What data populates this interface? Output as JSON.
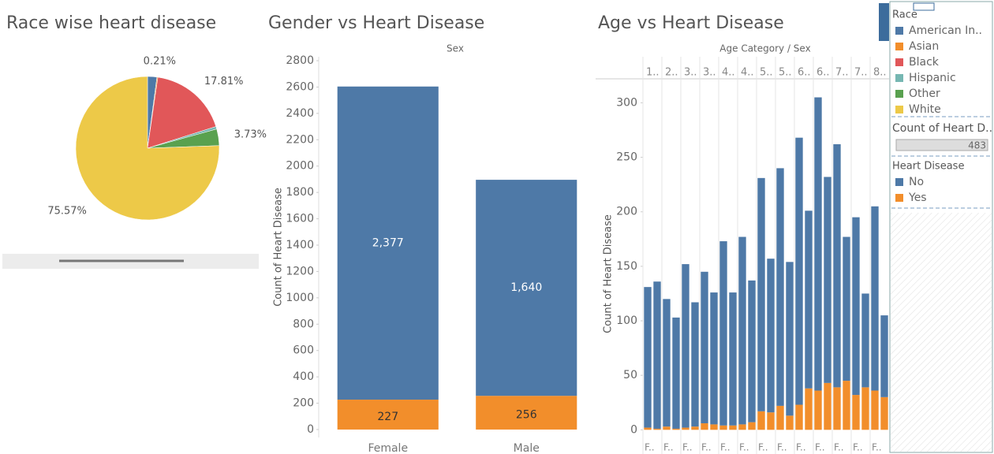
{
  "chart_data": [
    {
      "type": "pie",
      "title": "Race wise heart disease",
      "categories": [
        "American In..",
        "Asian",
        "Black",
        "Hispanic",
        "Other",
        "White"
      ],
      "values": [
        2.1,
        0.21,
        17.81,
        0.58,
        3.73,
        75.57
      ],
      "value_labels": [
        null,
        "0.21%",
        "17.81%",
        null,
        "3.73%",
        "75.57%"
      ],
      "colors": [
        "#4e79a7",
        "#f28e2b",
        "#e15759",
        "#76b7b2",
        "#59a14f",
        "#edc948"
      ],
      "legend_title": "Race"
    },
    {
      "type": "stacked_bar",
      "title": "Gender vs Heart Disease",
      "header": "Sex",
      "ylabel": "Count of Heart Disease",
      "categories": [
        "Female",
        "Male"
      ],
      "series": [
        {
          "name": "No",
          "color": "#4e79a7",
          "values": [
            2377,
            1640
          ],
          "value_labels": [
            "2,377",
            "1,640"
          ]
        },
        {
          "name": "Yes",
          "color": "#f28e2b",
          "values": [
            227,
            256
          ]
        }
      ],
      "ylim": [
        -60,
        2830
      ],
      "yticks": [
        0,
        200,
        400,
        600,
        800,
        1000,
        1200,
        1400,
        1600,
        1800,
        2000,
        2200,
        2400,
        2600,
        2800
      ],
      "legend_title": "Heart Disease"
    },
    {
      "type": "grouped_stacked_bar",
      "title": "Age vs Heart Disease",
      "header": "Age Category / Sex",
      "ylabel": "Count of Heart Disease",
      "groups": [
        "1..",
        "2..",
        "3..",
        "3..",
        "4..",
        "4..",
        "5..",
        "5..",
        "6..",
        "6..",
        "7..",
        "7..",
        "8.."
      ],
      "categories": [
        "F..",
        null,
        "F..",
        null,
        "F..",
        null,
        "F..",
        null,
        "F..",
        null,
        "F..",
        null,
        "F..",
        null,
        "F..",
        null,
        "F..",
        null,
        "F..",
        null,
        "F..",
        null,
        "F..",
        null,
        "F..",
        null
      ],
      "series": [
        {
          "color": "#4e79a7",
          "values": [
            129,
            135,
            117,
            102,
            150,
            114,
            139,
            121,
            169,
            122,
            172,
            130,
            214,
            141,
            218,
            141,
            245,
            163,
            269,
            189,
            223,
            132,
            163,
            86,
            169,
            75
          ]
        },
        {
          "color": "#f28e2b",
          "values": [
            2,
            1,
            3,
            1,
            2,
            3,
            6,
            5,
            4,
            4,
            5,
            7,
            17,
            16,
            22,
            13,
            23,
            38,
            36,
            43,
            39,
            45,
            32,
            39,
            36,
            30
          ]
        }
      ],
      "ylim": [
        -7,
        322
      ],
      "yticks": [
        0,
        50,
        100,
        150,
        200,
        250,
        300
      ]
    }
  ],
  "size_legend": {
    "title": "Count of Heart D..",
    "value": 483
  }
}
